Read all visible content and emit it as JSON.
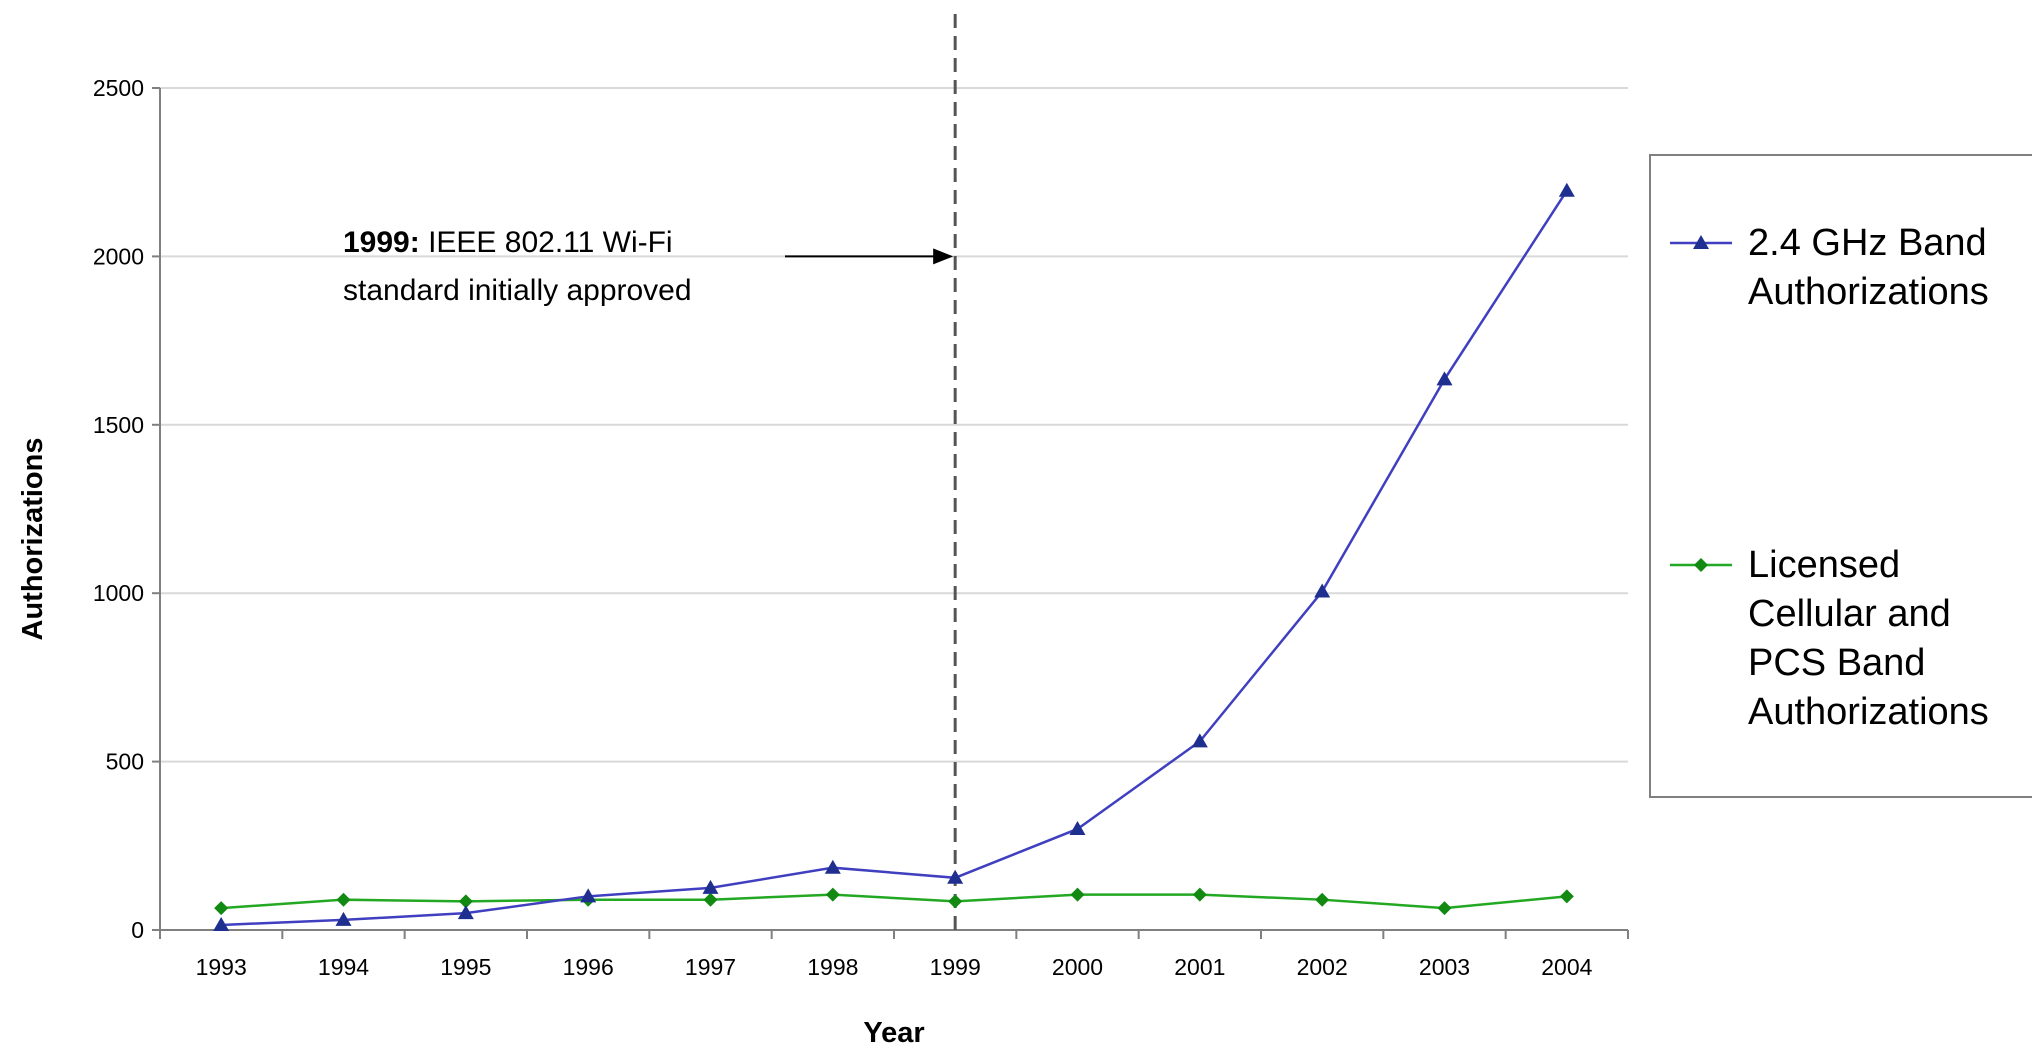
{
  "chart_data": {
    "type": "line",
    "title": "",
    "xlabel": "Year",
    "ylabel": "Authorizations",
    "categories": [
      "1993",
      "1994",
      "1995",
      "1996",
      "1997",
      "1998",
      "1999",
      "2000",
      "2001",
      "2002",
      "2003",
      "2004"
    ],
    "yticks": [
      "0",
      "500",
      "1000",
      "1500",
      "2000",
      "2500"
    ],
    "ylim": [
      0,
      2500
    ],
    "grid": true,
    "legend_position": "right",
    "series": [
      {
        "name": "2.4 GHz Band Authorizations",
        "legend_lines": [
          "2.4 GHz Band",
          "Authorizations"
        ],
        "color": "#3f3fc0",
        "marker": "triangle",
        "marker_color": "#1f2f8f",
        "values": [
          15,
          30,
          50,
          100,
          125,
          185,
          155,
          300,
          560,
          1005,
          1635,
          2195
        ]
      },
      {
        "name": "Licensed Cellular and PCS Band Authorizations",
        "legend_lines": [
          "Licensed",
          "Cellular and",
          "PCS Band",
          "Authorizations"
        ],
        "color": "#22a822",
        "marker": "diamond",
        "marker_color": "#128a12",
        "values": [
          65,
          90,
          85,
          90,
          90,
          105,
          85,
          105,
          105,
          90,
          65,
          100
        ]
      }
    ],
    "annotation": {
      "bold": "1999:",
      "line1_rest": " IEEE 802.11 Wi-Fi",
      "line2": "standard initially approved",
      "marker_year": "1999",
      "arrow_value": 2000
    }
  }
}
